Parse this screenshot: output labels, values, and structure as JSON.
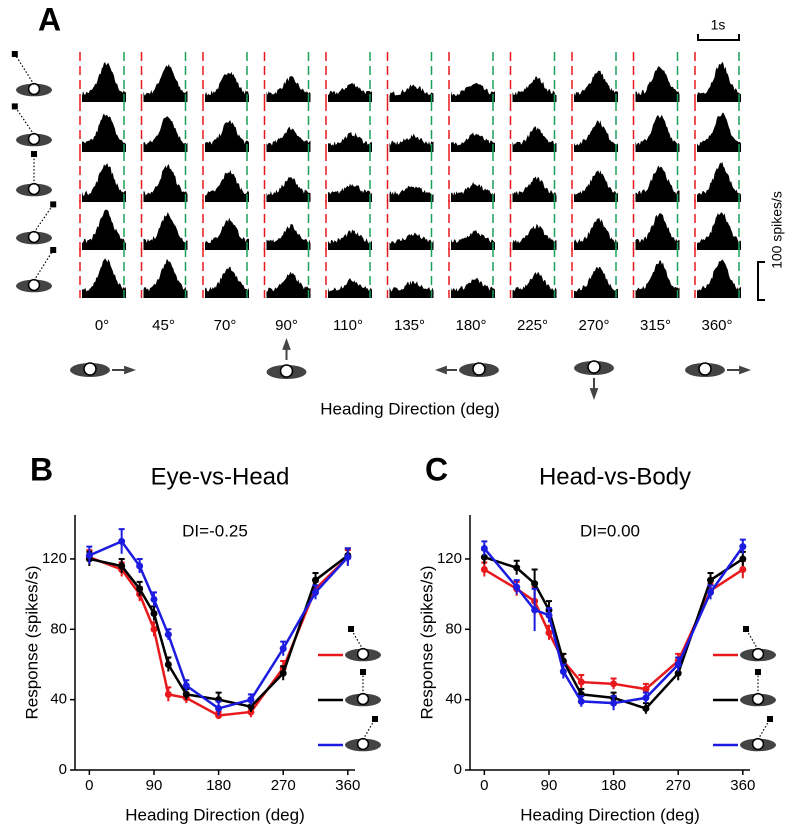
{
  "panel_a": {
    "label": "A",
    "time_scale": "1s",
    "rate_scale": "100 spikes/s",
    "headings": [
      "0°",
      "45°",
      "70°",
      "90°",
      "110°",
      "135°",
      "180°",
      "225°",
      "270°",
      "315°",
      "360°"
    ],
    "xlabel": "Heading Direction (deg)"
  },
  "chart_data": [
    {
      "type": "line",
      "panel_label": "B",
      "title": "Eye-vs-Head",
      "annotation": "DI=-0.25",
      "x": [
        0,
        45,
        70,
        90,
        110,
        135,
        180,
        225,
        270,
        315,
        360
      ],
      "series": [
        {
          "color": "#e8191c",
          "values": [
            121,
            114,
            100,
            80,
            43,
            41,
            31,
            33,
            58,
            103,
            121
          ],
          "errors": [
            4,
            4,
            4,
            4,
            4,
            3,
            2,
            3,
            4,
            4,
            4
          ]
        },
        {
          "color": "#000000",
          "values": [
            120,
            116,
            103,
            89,
            60,
            43,
            40,
            36,
            55,
            108,
            122
          ],
          "errors": [
            4,
            4,
            4,
            4,
            4,
            3,
            4,
            3,
            4,
            4,
            4
          ]
        },
        {
          "color": "#1c1ce0",
          "values": [
            122,
            130,
            116,
            97,
            77,
            48,
            35,
            40,
            69,
            101,
            121
          ],
          "errors": [
            5,
            7,
            4,
            4,
            3,
            3,
            4,
            3,
            4,
            4,
            5
          ]
        }
      ],
      "xlim": [
        -20,
        370
      ],
      "ylim": [
        0,
        145
      ],
      "xticks": [
        0,
        90,
        180,
        270,
        360
      ],
      "yticks": [
        0,
        40,
        80,
        120
      ],
      "xlabel": "Heading Direction (deg)",
      "ylabel": "Response (spikes/s)"
    },
    {
      "type": "line",
      "panel_label": "C",
      "title": "Head-vs-Body",
      "annotation": "DI=0.00",
      "x": [
        0,
        45,
        70,
        90,
        110,
        135,
        180,
        225,
        270,
        315,
        360
      ],
      "series": [
        {
          "color": "#e8191c",
          "values": [
            114,
            103,
            96,
            78,
            62,
            50,
            49,
            46,
            62,
            102,
            114
          ],
          "errors": [
            4,
            4,
            8,
            4,
            4,
            4,
            3,
            3,
            4,
            4,
            5
          ]
        },
        {
          "color": "#000000",
          "values": [
            121,
            115,
            106,
            91,
            62,
            43,
            41,
            35,
            55,
            108,
            120
          ],
          "errors": [
            4,
            4,
            8,
            5,
            4,
            3,
            3,
            3,
            4,
            4,
            4
          ]
        },
        {
          "color": "#1c1ce0",
          "values": [
            126,
            104,
            91,
            88,
            56,
            39,
            38,
            41,
            60,
            101,
            127
          ],
          "errors": [
            4,
            4,
            12,
            4,
            4,
            3,
            4,
            3,
            4,
            4,
            4
          ]
        }
      ],
      "xlim": [
        -20,
        370
      ],
      "ylim": [
        0,
        145
      ],
      "xticks": [
        0,
        90,
        180,
        270,
        360
      ],
      "yticks": [
        0,
        40,
        80,
        120
      ],
      "xlabel": "Heading Direction (deg)",
      "ylabel": "Response (spikes/s)"
    }
  ]
}
